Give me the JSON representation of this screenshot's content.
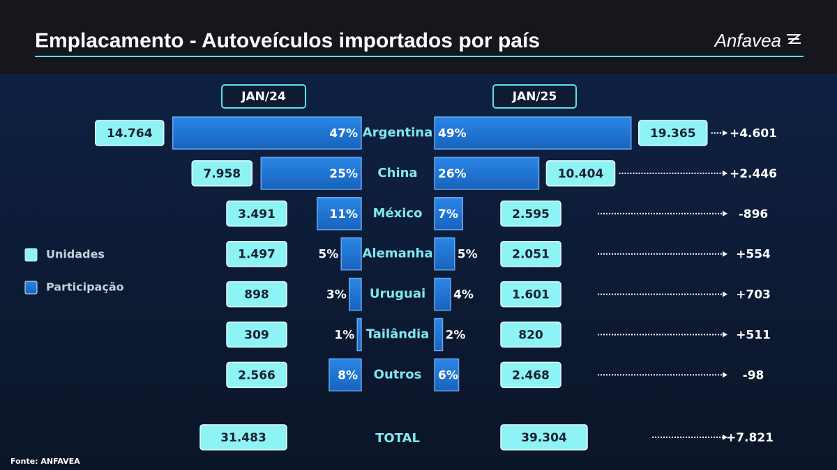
{
  "chart_data": {
    "type": "butterfly",
    "title": "Emplacamento - Autoveículos importados por país",
    "logo": "Anfavea",
    "source": "Fonte: ANFAVEA",
    "legend": [
      {
        "name": "Unidades",
        "color": "#8ef3f5"
      },
      {
        "name": "Participação",
        "color": "#1f73d0"
      }
    ],
    "categories": [
      "Argentina",
      "China",
      "México",
      "Alemanha",
      "Uruguai",
      "Tailândia",
      "Outros"
    ],
    "periods": [
      {
        "name": "JAN/24",
        "units": {
          "values": [
            14764,
            7958,
            3491,
            1497,
            898,
            309,
            2566
          ],
          "value_labels": [
            "14.764",
            "7.958",
            "3.491",
            "1.497",
            "898",
            "309",
            "2.566"
          ]
        },
        "share": {
          "values": [
            47,
            25,
            11,
            5,
            3,
            1,
            8
          ],
          "value_labels": [
            "47%",
            "25%",
            "11%",
            "5%",
            "3%",
            "1%",
            "8%"
          ]
        },
        "total": {
          "value": 31483,
          "label": "31.483"
        }
      },
      {
        "name": "JAN/25",
        "units": {
          "values": [
            19365,
            10404,
            2595,
            2051,
            1601,
            820,
            2468
          ],
          "value_labels": [
            "19.365",
            "10.404",
            "2.595",
            "2.051",
            "1.601",
            "820",
            "2.468"
          ]
        },
        "share": {
          "values": [
            49,
            26,
            7,
            5,
            4,
            2,
            6
          ],
          "value_labels": [
            "49%",
            "26%",
            "7%",
            "5%",
            "4%",
            "2%",
            "6%"
          ]
        },
        "total": {
          "value": 39304,
          "label": "39.304"
        }
      }
    ],
    "change": {
      "values": [
        4601,
        2446,
        -896,
        554,
        703,
        511,
        -98
      ],
      "value_labels": [
        "+4.601",
        "+2.446",
        "-896",
        "+554",
        "+703",
        "+511",
        "-98"
      ]
    },
    "total_label": "TOTAL",
    "total_change": {
      "value": 7821,
      "label": "+7.821"
    }
  }
}
